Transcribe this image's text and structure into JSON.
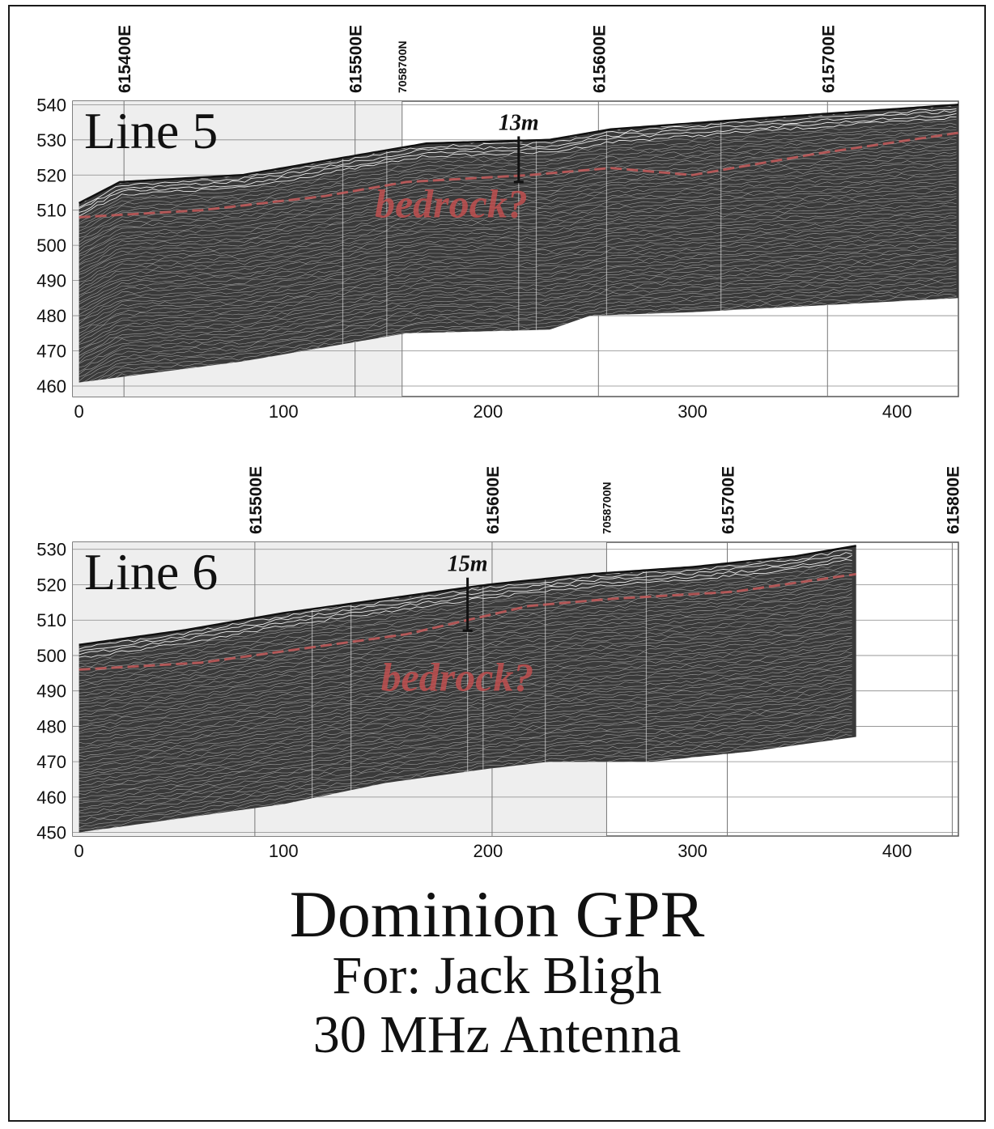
{
  "chart_data": [
    {
      "type": "heatmap",
      "title": "Line 5",
      "xlim": [
        -3,
        430
      ],
      "ylim": [
        457,
        541
      ],
      "x_ticks": [
        0,
        100,
        200,
        300,
        400
      ],
      "y_ticks": [
        540,
        530,
        520,
        510,
        500,
        490,
        480,
        470,
        460
      ],
      "top_labels": [
        {
          "text": "615400E",
          "x": 22
        },
        {
          "text": "615500E",
          "x": 135
        },
        {
          "text": "7058700N",
          "x": 158
        },
        {
          "text": "615600E",
          "x": 254
        },
        {
          "text": "615700E",
          "x": 366
        }
      ],
      "surface_elevation": [
        [
          0,
          512
        ],
        [
          20,
          518
        ],
        [
          80,
          520
        ],
        [
          130,
          525
        ],
        [
          170,
          529
        ],
        [
          230,
          530
        ],
        [
          260,
          533
        ],
        [
          330,
          536
        ],
        [
          430,
          540
        ]
      ],
      "base_elevation": [
        [
          0,
          461
        ],
        [
          80,
          467
        ],
        [
          130,
          472
        ],
        [
          160,
          475
        ],
        [
          230,
          476
        ],
        [
          250,
          480
        ],
        [
          300,
          481
        ],
        [
          430,
          485
        ]
      ],
      "bedrock_reflector": [
        [
          0,
          508
        ],
        [
          60,
          510
        ],
        [
          120,
          514
        ],
        [
          160,
          518
        ],
        [
          220,
          520
        ],
        [
          260,
          522
        ],
        [
          300,
          520
        ],
        [
          360,
          526
        ],
        [
          430,
          532
        ]
      ],
      "thickness_annotation": {
        "label": "13m",
        "x": 215,
        "top": 531,
        "bottom": 518
      },
      "annotation": "bedrock?",
      "annotation_pos": {
        "x": 182,
        "y": 508
      }
    },
    {
      "type": "heatmap",
      "title": "Line 6",
      "xlim": [
        -3,
        430
      ],
      "ylim": [
        449,
        532
      ],
      "x_ticks": [
        0,
        100,
        200,
        300,
        400
      ],
      "y_ticks": [
        530,
        520,
        510,
        500,
        490,
        480,
        470,
        460,
        450
      ],
      "top_labels": [
        {
          "text": "615500E",
          "x": 86
        },
        {
          "text": "615600E",
          "x": 202
        },
        {
          "text": "7058700N",
          "x": 258
        },
        {
          "text": "615700E",
          "x": 317
        },
        {
          "text": "615800E",
          "x": 427
        }
      ],
      "surface_elevation": [
        [
          0,
          503
        ],
        [
          50,
          507
        ],
        [
          100,
          512
        ],
        [
          150,
          516
        ],
        [
          200,
          520
        ],
        [
          250,
          523
        ],
        [
          300,
          525
        ],
        [
          350,
          528
        ],
        [
          380,
          531
        ]
      ],
      "base_elevation": [
        [
          0,
          450
        ],
        [
          50,
          454
        ],
        [
          100,
          458
        ],
        [
          150,
          464
        ],
        [
          200,
          468
        ],
        [
          230,
          470
        ],
        [
          280,
          470
        ],
        [
          330,
          473
        ],
        [
          380,
          477
        ]
      ],
      "bedrock_reflector": [
        [
          0,
          496
        ],
        [
          60,
          498
        ],
        [
          110,
          502
        ],
        [
          160,
          506
        ],
        [
          220,
          514
        ],
        [
          260,
          516
        ],
        [
          320,
          518
        ],
        [
          380,
          523
        ]
      ],
      "thickness_annotation": {
        "label": "15m",
        "x": 190,
        "top": 522,
        "bottom": 507
      },
      "annotation": "bedrock?",
      "annotation_pos": {
        "x": 185,
        "y": 490
      }
    }
  ],
  "footer": {
    "title": "Dominion GPR",
    "client": "For: Jack Bligh",
    "antenna": "30 MHz Antenna"
  },
  "colors": {
    "trace": "#222222",
    "reflector": "#c65a5a",
    "bedrock_text": "#c05050",
    "shade": "#eeeeee"
  }
}
